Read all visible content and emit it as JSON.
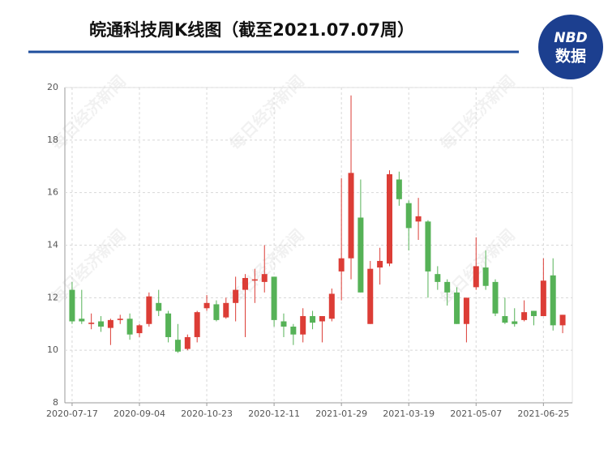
{
  "chart_data": {
    "type": "candlestick",
    "title": "皖通科技周K线图（截至2021.07.07周）",
    "logo": {
      "top": "NBD",
      "bottom": "数据"
    },
    "watermark": "每日经济新闻",
    "categories": [
      "2020-07-17",
      null,
      null,
      null,
      null,
      null,
      null,
      "2020-09-04",
      null,
      null,
      null,
      null,
      null,
      null,
      "2020-10-23",
      null,
      null,
      null,
      null,
      null,
      null,
      "2020-12-11",
      null,
      null,
      null,
      null,
      null,
      null,
      "2021-01-29",
      null,
      null,
      null,
      null,
      null,
      null,
      "2021-03-19",
      null,
      null,
      null,
      null,
      null,
      null,
      "2021-05-07",
      null,
      null,
      null,
      null,
      null,
      null,
      "2021-06-25",
      null,
      null
    ],
    "open": [
      12.3,
      11.2,
      11.0,
      11.1,
      10.85,
      11.15,
      11.2,
      10.65,
      11.0,
      11.8,
      11.4,
      10.4,
      10.05,
      10.5,
      11.6,
      11.75,
      11.25,
      11.8,
      12.3,
      12.65,
      12.6,
      12.8,
      11.1,
      10.9,
      10.6,
      11.3,
      11.1,
      11.2,
      13.0,
      13.5,
      15.05,
      11.0,
      13.15,
      13.3,
      16.5,
      15.6,
      14.9,
      14.9,
      12.9,
      12.6,
      12.2,
      11.0,
      12.4,
      13.15,
      12.6,
      11.3,
      11.1,
      11.15,
      11.5,
      11.3,
      12.85,
      10.95
    ],
    "close": [
      11.1,
      11.1,
      11.05,
      10.9,
      11.15,
      11.2,
      10.6,
      10.95,
      12.05,
      11.5,
      10.5,
      9.95,
      10.5,
      11.45,
      11.8,
      11.15,
      11.8,
      12.3,
      12.75,
      12.7,
      12.9,
      11.15,
      10.9,
      10.6,
      11.3,
      11.05,
      11.3,
      12.15,
      13.5,
      16.75,
      12.2,
      13.1,
      13.4,
      16.7,
      15.75,
      14.65,
      15.1,
      13.0,
      12.6,
      12.2,
      11.0,
      12.0,
      13.2,
      12.45,
      11.4,
      11.05,
      11.0,
      11.45,
      11.3,
      12.65,
      10.95,
      11.35
    ],
    "high": [
      12.6,
      12.3,
      11.4,
      11.3,
      11.2,
      11.35,
      11.4,
      11.0,
      12.2,
      12.3,
      11.5,
      11.0,
      10.6,
      11.5,
      12.1,
      11.9,
      12.0,
      12.8,
      12.9,
      13.1,
      14.0,
      12.8,
      11.4,
      11.0,
      11.6,
      11.5,
      11.3,
      12.35,
      16.55,
      19.7,
      16.5,
      13.4,
      13.9,
      16.85,
      16.8,
      15.7,
      15.8,
      14.95,
      13.2,
      12.7,
      12.4,
      12.0,
      14.3,
      13.8,
      12.7,
      12.0,
      11.6,
      11.9,
      11.5,
      13.5,
      13.5,
      11.35
    ],
    "low": [
      11.0,
      11.0,
      10.8,
      10.7,
      10.2,
      11.0,
      10.4,
      10.5,
      10.9,
      11.3,
      10.3,
      9.9,
      10.0,
      10.3,
      11.5,
      11.1,
      11.2,
      11.1,
      10.5,
      11.8,
      12.2,
      10.9,
      10.5,
      10.2,
      10.3,
      10.8,
      10.3,
      11.1,
      11.9,
      12.7,
      12.2,
      11.0,
      12.5,
      13.2,
      15.5,
      13.8,
      14.2,
      12.0,
      12.3,
      11.7,
      11.0,
      10.3,
      12.3,
      12.3,
      11.3,
      11.0,
      10.9,
      11.1,
      10.95,
      11.3,
      10.75,
      10.65
    ],
    "up_color": "#dc3d36",
    "down_color": "#56b257",
    "ylim": [
      8,
      20
    ],
    "yticks": [
      8,
      10,
      12,
      14,
      16,
      18,
      20
    ],
    "grid": true
  }
}
